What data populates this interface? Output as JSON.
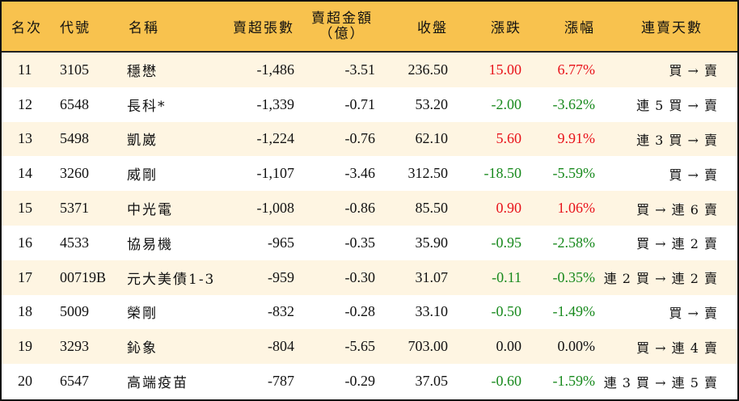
{
  "table": {
    "headers": {
      "rank": "名次",
      "code": "代號",
      "name": "名稱",
      "sell_volume": "賣超張數",
      "sell_amount_line1": "賣超金額",
      "sell_amount_line2": "（億）",
      "close": "收盤",
      "change": "漲跌",
      "change_pct": "漲幅",
      "streak": "連賣天數"
    },
    "colors": {
      "header_bg": "#F8C24E",
      "row_odd_bg": "#FEF5E2",
      "row_even_bg": "#FFFFFF",
      "up": "#E8121A",
      "down": "#17891C"
    },
    "rows": [
      {
        "rank": "11",
        "code": "3105",
        "name": "穩懋",
        "sell_volume": "-1,486",
        "sell_amount": "-3.51",
        "close": "236.50",
        "change": "15.00",
        "change_pct": "6.77%",
        "direction": "up",
        "streak": "買 → 賣"
      },
      {
        "rank": "12",
        "code": "6548",
        "name": "長科*",
        "sell_volume": "-1,339",
        "sell_amount": "-0.71",
        "close": "53.20",
        "change": "-2.00",
        "change_pct": "-3.62%",
        "direction": "down",
        "streak": "連 5 買 → 賣"
      },
      {
        "rank": "13",
        "code": "5498",
        "name": "凱崴",
        "sell_volume": "-1,224",
        "sell_amount": "-0.76",
        "close": "62.10",
        "change": "5.60",
        "change_pct": "9.91%",
        "direction": "up",
        "streak": "連 3 買 → 賣"
      },
      {
        "rank": "14",
        "code": "3260",
        "name": "威剛",
        "sell_volume": "-1,107",
        "sell_amount": "-3.46",
        "close": "312.50",
        "change": "-18.50",
        "change_pct": "-5.59%",
        "direction": "down",
        "streak": "買 → 賣"
      },
      {
        "rank": "15",
        "code": "5371",
        "name": "中光電",
        "sell_volume": "-1,008",
        "sell_amount": "-0.86",
        "close": "85.50",
        "change": "0.90",
        "change_pct": "1.06%",
        "direction": "up",
        "streak": "買 → 連 6 賣"
      },
      {
        "rank": "16",
        "code": "4533",
        "name": "協易機",
        "sell_volume": "-965",
        "sell_amount": "-0.35",
        "close": "35.90",
        "change": "-0.95",
        "change_pct": "-2.58%",
        "direction": "down",
        "streak": "買 → 連 2 賣"
      },
      {
        "rank": "17",
        "code": "00719B",
        "name": "元大美債1-3",
        "sell_volume": "-959",
        "sell_amount": "-0.30",
        "close": "31.07",
        "change": "-0.11",
        "change_pct": "-0.35%",
        "direction": "down",
        "streak": "連 2 買 → 連 2 賣"
      },
      {
        "rank": "18",
        "code": "5009",
        "name": "榮剛",
        "sell_volume": "-832",
        "sell_amount": "-0.28",
        "close": "33.10",
        "change": "-0.50",
        "change_pct": "-1.49%",
        "direction": "down",
        "streak": "買 → 賣"
      },
      {
        "rank": "19",
        "code": "3293",
        "name": "鈊象",
        "sell_volume": "-804",
        "sell_amount": "-5.65",
        "close": "703.00",
        "change": "0.00",
        "change_pct": "0.00%",
        "direction": "flat",
        "streak": "買 → 連 4 賣"
      },
      {
        "rank": "20",
        "code": "6547",
        "name": "高端疫苗",
        "sell_volume": "-787",
        "sell_amount": "-0.29",
        "close": "37.05",
        "change": "-0.60",
        "change_pct": "-1.59%",
        "direction": "down",
        "streak": "連 3 買 → 連 5 賣"
      }
    ]
  }
}
